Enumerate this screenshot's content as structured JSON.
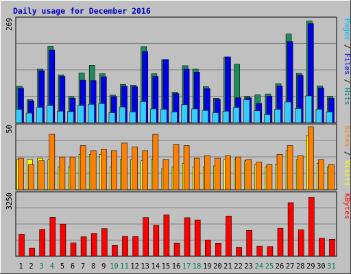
{
  "chart_data": {
    "type": "bar",
    "title": "Daily usage for December 2016",
    "days": [
      "1",
      "2",
      "3",
      "4",
      "5",
      "6",
      "7",
      "8",
      "9",
      "10",
      "11",
      "12",
      "13",
      "14",
      "15",
      "16",
      "17",
      "18",
      "19",
      "20",
      "21",
      "22",
      "23",
      "24",
      "25",
      "26",
      "27",
      "28",
      "29",
      "30",
      "31"
    ],
    "weekend_days": [
      "3",
      "4",
      "10",
      "11",
      "17",
      "18",
      "24",
      "25",
      "31"
    ],
    "panels": [
      {
        "ymax": 269,
        "ymax_label": "269",
        "right_label": [
          {
            "text": "Pages",
            "color": "#00C0FF"
          },
          {
            "text": " / ",
            "color": "#000000"
          },
          {
            "text": "Files",
            "color": "#0000FF"
          },
          {
            "text": " / ",
            "color": "#000000"
          },
          {
            "text": "Hits",
            "color": "#008080"
          }
        ],
        "series": [
          {
            "name": "Hits",
            "color": "#1C8C5C",
            "values": [
              95,
              60,
              140,
              200,
              125,
              68,
              130,
              150,
              128,
              72,
              100,
              98,
              199,
              128,
              165,
              80,
              149,
              140,
              94,
              64,
              172,
              153,
              69,
              73,
              75,
              102,
              232,
              129,
              266,
              96,
              69
            ]
          },
          {
            "name": "Files",
            "color": "#0000E6",
            "values": [
              90,
              57,
              136,
              190,
              121,
              64,
              111,
              110,
              120,
              68,
              95,
              94,
              186,
              121,
              165,
              76,
              140,
              132,
              89,
              61,
              172,
              65,
              65,
              50,
              69,
              96,
              212,
              124,
              259,
              91,
              64
            ]
          },
          {
            "name": "Pages",
            "color": "#33CCFF",
            "values": [
              35,
              25,
              40,
              45,
              30,
              29,
              45,
              48,
              50,
              26,
              41,
              28,
              55,
              36,
              35,
              28,
              47,
              36,
              32,
              26,
              30,
              40,
              60,
              31,
              21,
              35,
              54,
              37,
              70,
              35,
              28
            ]
          }
        ]
      },
      {
        "ymax": 50,
        "ymax_label": "50",
        "right_label": [
          {
            "text": "Sites",
            "color": "#FF8000"
          },
          {
            "text": " / ",
            "color": "#000000"
          },
          {
            "text": "Visits",
            "color": "#FFFF00"
          }
        ],
        "series": [
          {
            "name": "Visits",
            "color": "#FFFF00",
            "values": [
              24,
              24,
              25,
              24,
              18,
              18,
              28,
              28,
              28,
              18,
              24,
              24,
              23,
              24,
              17,
              18,
              21,
              18,
              18,
              19,
              24,
              24,
              23,
              20,
              18,
              20,
              31,
              24,
              43,
              21,
              18
            ]
          },
          {
            "name": "Sites",
            "color": "#FF8000",
            "values": [
              25,
              20,
              23,
              44,
              26,
              26,
              35,
              31,
              32,
              31,
              37,
              34,
              31,
              44,
              24,
              36,
              35,
              25,
              27,
              25,
              27,
              26,
              24,
              22,
              20,
              28,
              35,
              27,
              50,
              24,
              20
            ]
          }
        ]
      },
      {
        "ymax": 3250,
        "ymax_label": "3250",
        "right_label": [
          {
            "text": "KBytes",
            "color": "#FF0000"
          }
        ],
        "series": [
          {
            "name": "KBytes",
            "color": "#FF0000",
            "values": [
              1150,
              428,
              1413,
              2045,
              1689,
              697,
              1023,
              1202,
              1456,
              565,
              1042,
              1033,
              2033,
              1627,
              2175,
              684,
              2026,
              1910,
              858,
              675,
              2117,
              462,
              1361,
              536,
              512,
              1475,
              2819,
              1390,
              3100,
              948,
              890
            ]
          }
        ]
      }
    ]
  }
}
